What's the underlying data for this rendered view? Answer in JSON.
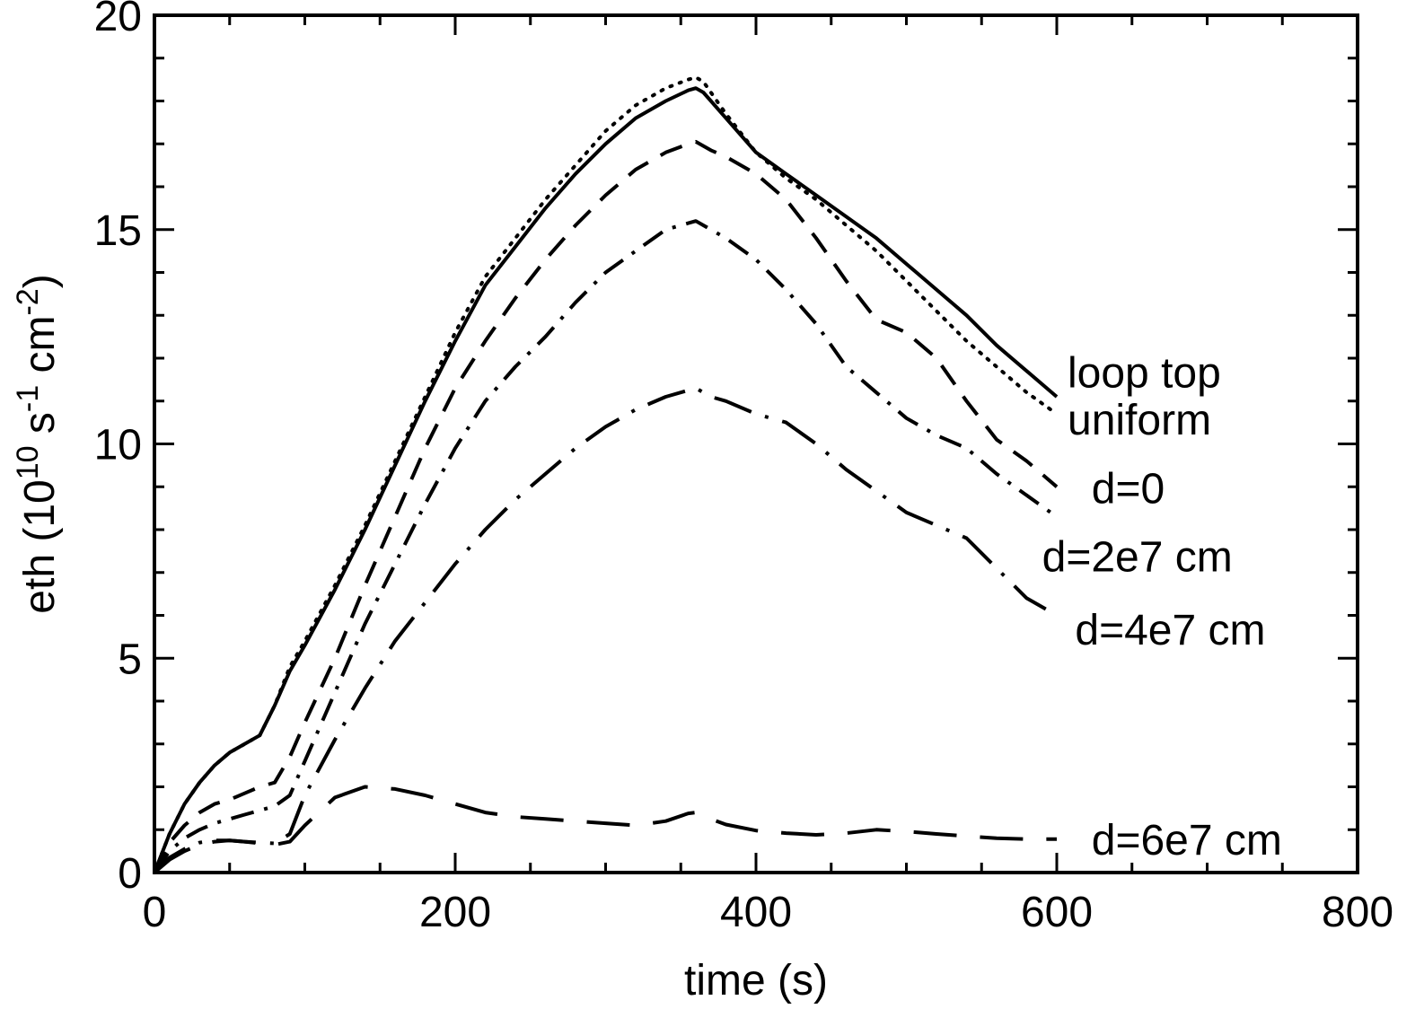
{
  "chart_data": {
    "type": "line",
    "title": "",
    "xlabel": "time (s)",
    "ylabel_base": "eth (10",
    "ylabel_exp1": "10",
    "ylabel_mid1": " s",
    "ylabel_exp2": "-1",
    "ylabel_mid2": " cm",
    "ylabel_exp3": "-2",
    "ylabel_end": ")",
    "xlim": [
      0,
      800
    ],
    "ylim": [
      0,
      20
    ],
    "xticks": [
      0,
      200,
      400,
      600,
      800
    ],
    "yticks": [
      0,
      5,
      10,
      15,
      20
    ],
    "xtick_labels": [
      "0",
      "200",
      "400",
      "600",
      "800"
    ],
    "ytick_labels": [
      "0",
      "5",
      "10",
      "15",
      "20"
    ],
    "grid": false,
    "series": [
      {
        "name": "loop top",
        "linestyle": "solid",
        "x": [
          0,
          10,
          20,
          30,
          40,
          50,
          60,
          70,
          80,
          90,
          100,
          120,
          140,
          160,
          180,
          200,
          220,
          240,
          260,
          280,
          300,
          320,
          340,
          355,
          360,
          365,
          370,
          380,
          400,
          420,
          440,
          460,
          480,
          500,
          520,
          540,
          560,
          580,
          600
        ],
        "y": [
          0,
          0.9,
          1.6,
          2.1,
          2.5,
          2.8,
          3.0,
          3.2,
          3.9,
          4.7,
          5.3,
          6.6,
          8.0,
          9.5,
          11.0,
          12.4,
          13.7,
          14.6,
          15.5,
          16.3,
          17.0,
          17.6,
          18.0,
          18.25,
          18.3,
          18.2,
          18.0,
          17.6,
          16.8,
          16.3,
          15.8,
          15.3,
          14.8,
          14.2,
          13.6,
          13.0,
          12.3,
          11.7,
          11.1
        ]
      },
      {
        "name": "uniform",
        "linestyle": "dotted",
        "x": [
          0,
          10,
          20,
          30,
          40,
          50,
          60,
          70,
          80,
          90,
          100,
          120,
          140,
          160,
          180,
          200,
          220,
          240,
          260,
          280,
          300,
          320,
          340,
          355,
          360,
          365,
          370,
          380,
          400,
          420,
          440,
          460,
          480,
          500,
          520,
          540,
          560,
          580,
          600
        ],
        "y": [
          0,
          0.9,
          1.6,
          2.1,
          2.5,
          2.8,
          3.0,
          3.2,
          3.9,
          4.8,
          5.4,
          6.7,
          8.1,
          9.6,
          11.1,
          12.6,
          13.9,
          14.8,
          15.7,
          16.5,
          17.3,
          17.9,
          18.3,
          18.5,
          18.55,
          18.45,
          18.2,
          17.7,
          16.8,
          16.2,
          15.7,
          15.1,
          14.5,
          13.8,
          13.1,
          12.4,
          11.8,
          11.2,
          10.7
        ]
      },
      {
        "name": "d=0",
        "linestyle": "dashed",
        "x": [
          0,
          10,
          20,
          30,
          40,
          50,
          60,
          70,
          80,
          90,
          100,
          120,
          140,
          160,
          180,
          200,
          220,
          240,
          260,
          280,
          300,
          320,
          340,
          355,
          360,
          365,
          370,
          380,
          400,
          420,
          440,
          460,
          480,
          500,
          520,
          540,
          560,
          580,
          600
        ],
        "y": [
          0,
          0.7,
          1.1,
          1.4,
          1.6,
          1.7,
          1.85,
          2.0,
          2.1,
          2.7,
          3.5,
          5.0,
          6.7,
          8.3,
          9.9,
          11.3,
          12.4,
          13.4,
          14.3,
          15.1,
          15.8,
          16.4,
          16.8,
          17.0,
          17.05,
          16.95,
          16.85,
          16.7,
          16.3,
          15.7,
          14.8,
          13.8,
          12.9,
          12.6,
          12.0,
          11.0,
          10.1,
          9.6,
          9.0
        ]
      },
      {
        "name": "d=2e7 cm",
        "linestyle": "dashdot",
        "x": [
          0,
          10,
          20,
          30,
          40,
          50,
          60,
          70,
          80,
          90,
          100,
          120,
          140,
          160,
          180,
          200,
          220,
          240,
          260,
          280,
          300,
          320,
          340,
          355,
          360,
          365,
          370,
          380,
          400,
          420,
          440,
          460,
          480,
          500,
          520,
          540,
          560,
          580,
          600
        ],
        "y": [
          0,
          0.5,
          0.8,
          1.0,
          1.15,
          1.25,
          1.35,
          1.45,
          1.55,
          1.8,
          2.6,
          4.2,
          5.8,
          7.2,
          8.6,
          9.9,
          11.0,
          11.8,
          12.5,
          13.3,
          14.0,
          14.5,
          15.0,
          15.15,
          15.2,
          15.1,
          15.0,
          14.8,
          14.3,
          13.6,
          12.8,
          11.8,
          11.2,
          10.6,
          10.2,
          9.9,
          9.3,
          8.8,
          8.3
        ]
      },
      {
        "name": "d=4e7 cm",
        "linestyle": "longdash",
        "x": [
          0,
          10,
          20,
          30,
          40,
          50,
          60,
          70,
          80,
          90,
          100,
          120,
          140,
          160,
          180,
          200,
          220,
          240,
          260,
          280,
          300,
          320,
          340,
          355,
          360,
          365,
          370,
          380,
          400,
          420,
          440,
          460,
          480,
          500,
          520,
          540,
          560,
          580,
          600
        ],
        "y": [
          0,
          0.35,
          0.55,
          0.7,
          0.75,
          0.75,
          0.72,
          0.7,
          0.68,
          0.9,
          1.8,
          3.1,
          4.3,
          5.4,
          6.3,
          7.2,
          8.0,
          8.7,
          9.3,
          9.9,
          10.4,
          10.8,
          11.1,
          11.25,
          11.3,
          11.2,
          11.1,
          11.0,
          10.7,
          10.5,
          10.0,
          9.4,
          8.9,
          8.4,
          8.1,
          7.8,
          7.1,
          6.4,
          6.0
        ]
      },
      {
        "name": "d=6e7 cm",
        "linestyle": "verylongdash",
        "x": [
          0,
          10,
          20,
          30,
          40,
          50,
          60,
          70,
          80,
          90,
          100,
          120,
          140,
          160,
          180,
          200,
          220,
          240,
          260,
          280,
          300,
          320,
          340,
          355,
          360,
          365,
          370,
          380,
          400,
          420,
          440,
          460,
          480,
          500,
          520,
          540,
          560,
          580,
          600
        ],
        "y": [
          0,
          0.3,
          0.5,
          0.65,
          0.72,
          0.75,
          0.72,
          0.68,
          0.65,
          0.72,
          1.1,
          1.75,
          2.0,
          1.95,
          1.8,
          1.6,
          1.4,
          1.3,
          1.25,
          1.2,
          1.15,
          1.1,
          1.2,
          1.38,
          1.4,
          1.35,
          1.25,
          1.12,
          0.98,
          0.92,
          0.88,
          0.92,
          1.0,
          0.96,
          0.9,
          0.85,
          0.8,
          0.78,
          0.78
        ]
      }
    ],
    "series_labels": [
      {
        "text": "loop top",
        "anchor_x": 600,
        "anchor_y": 11.7
      },
      {
        "text": "uniform",
        "anchor_x": 600,
        "anchor_y": 10.6
      },
      {
        "text": "d=0",
        "anchor_x": 610,
        "anchor_y": 9.0
      },
      {
        "text": "d=2e7 cm",
        "anchor_x": 595,
        "anchor_y": 7.4
      },
      {
        "text": "d=4e7 cm",
        "anchor_x": 605,
        "anchor_y": 5.7
      },
      {
        "text": "d=6e7 cm",
        "anchor_x": 610,
        "anchor_y": 0.8
      }
    ]
  }
}
